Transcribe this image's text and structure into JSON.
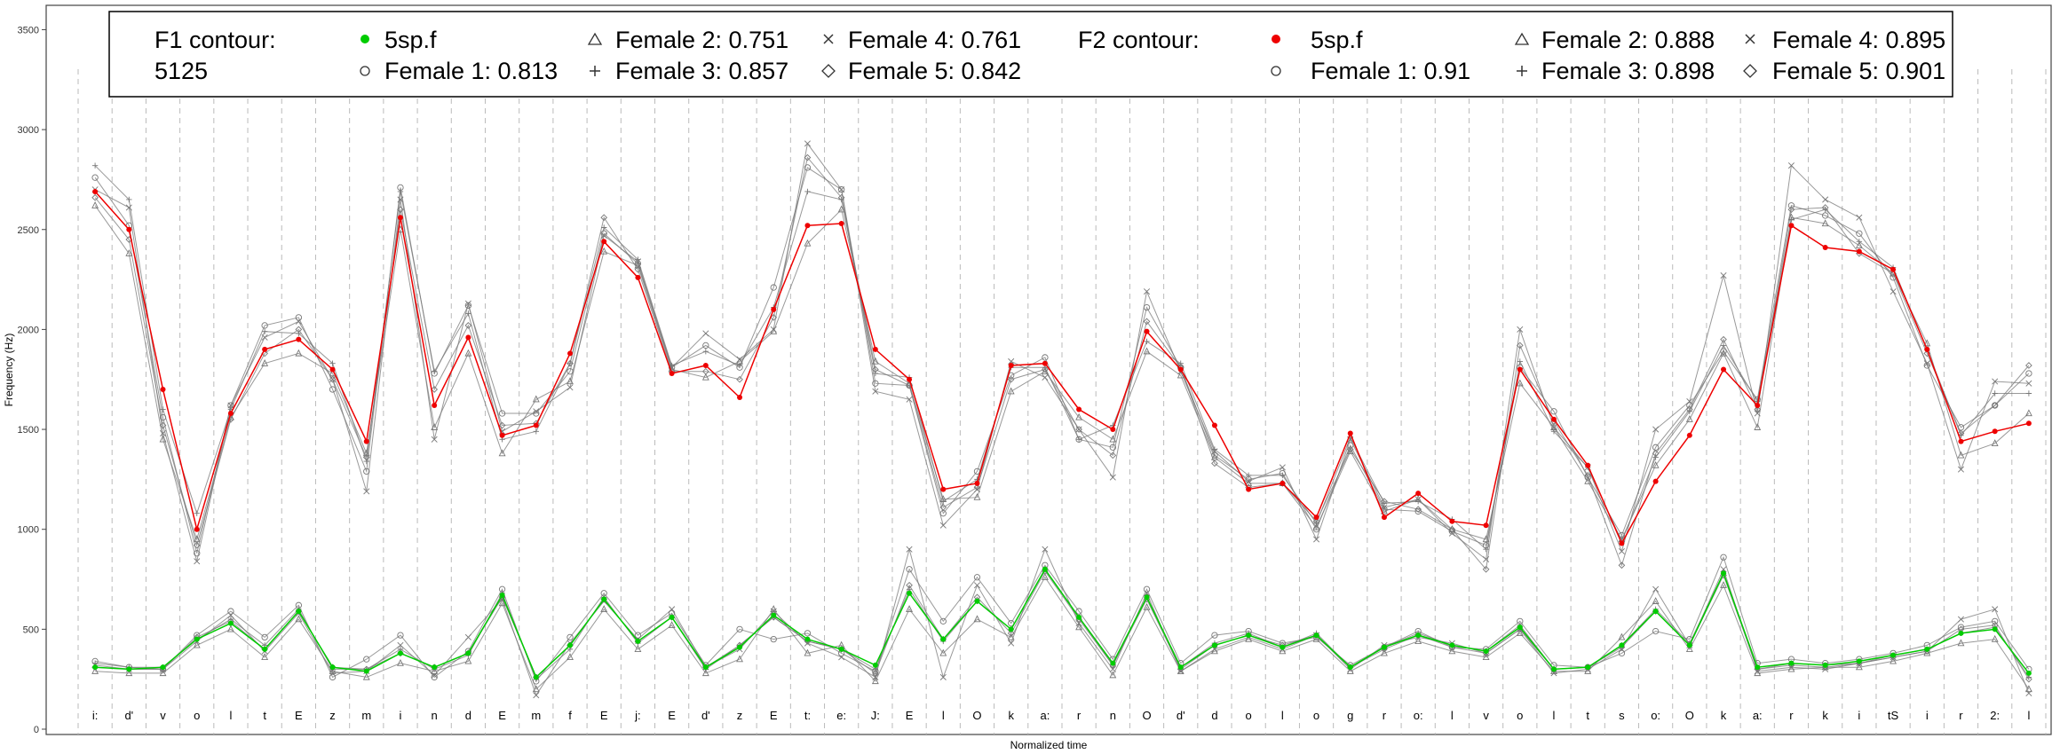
{
  "chart_data": {
    "type": "line",
    "xlabel": "Normalized time",
    "ylabel": "Frequency (Hz)",
    "ylim": [
      0,
      3600
    ],
    "yticks": [
      0,
      500,
      1000,
      1500,
      2000,
      2500,
      3000,
      3500
    ],
    "grid": "vertical dashed segment boundaries",
    "legend_placement": "top",
    "colors": {
      "f1_speaker": "#00cc00",
      "f2_speaker": "#ee0000",
      "reference": "#777777"
    },
    "segments": [
      "i:",
      "d'",
      "v",
      "o",
      "l",
      "t",
      "E",
      "z",
      "m",
      "i",
      "n",
      "d",
      "E",
      "m",
      "f",
      "E",
      "j:",
      "E",
      "d'",
      "z",
      "E",
      "t:",
      "e:",
      "J:",
      "E",
      "l",
      "O",
      "k",
      "a:",
      "r",
      "n",
      "O",
      "d'",
      "d",
      "o",
      "l",
      "o",
      "g",
      "r",
      "o:",
      "l",
      "v",
      "o",
      "l",
      "t",
      "s",
      "o:",
      "O",
      "k",
      "a:",
      "r",
      "k",
      "i",
      "tS",
      "i",
      "r",
      "2:",
      "l"
    ],
    "legend": {
      "f1_title_line1": "F1 contour:",
      "f1_title_line2": "5125",
      "f1_entries": [
        "5sp.f",
        "Female 1: 0.813",
        "Female 2: 0.751",
        "Female 3: 0.857",
        "Female 4: 0.761",
        "Female 5: 0.842"
      ],
      "f2_title": "F2 contour:",
      "f2_entries": [
        "5sp.f",
        "Female 1: 0.91",
        "Female 2: 0.888",
        "Female 3: 0.898",
        "Female 4: 0.895",
        "Female 5: 0.901"
      ]
    },
    "series": [
      {
        "name": "F1 contour: 5sp.f",
        "color": "#00cc00",
        "values": [
          310,
          300,
          310,
          450,
          530,
          400,
          590,
          310,
          290,
          380,
          310,
          380,
          670,
          260,
          420,
          650,
          440,
          560,
          310,
          410,
          570,
          450,
          400,
          320,
          680,
          450,
          640,
          500,
          800,
          560,
          330,
          660,
          310,
          420,
          470,
          410,
          470,
          310,
          410,
          470,
          420,
          390,
          510,
          300,
          310,
          420,
          590,
          420,
          780,
          310,
          330,
          320,
          340,
          370,
          400,
          480,
          500,
          280
        ]
      },
      {
        "name": "F2 contour: 5sp.f",
        "color": "#ee0000",
        "values": [
          2690,
          2500,
          1700,
          1000,
          1580,
          1900,
          1950,
          1800,
          1440,
          2560,
          1620,
          1960,
          1470,
          1520,
          1880,
          2440,
          2260,
          1780,
          1820,
          1660,
          2100,
          2520,
          2530,
          1900,
          1750,
          1200,
          1230,
          1820,
          1830,
          1600,
          1500,
          1990,
          1800,
          1520,
          1200,
          1230,
          1060,
          1480,
          1060,
          1180,
          1040,
          1020,
          1800,
          1550,
          1320,
          930,
          1240,
          1470,
          1800,
          1620,
          2520,
          2410,
          2390,
          2300,
          1900,
          1440,
          1490,
          1530
        ]
      },
      {
        "name": "Female 1",
        "color": "#777777",
        "values": [
          2760,
          2520,
          1560,
          880,
          1620,
          2020,
          2060,
          1700,
          1290,
          2710,
          1780,
          2120,
          1580,
          1580,
          1790,
          2480,
          2330,
          1810,
          1920,
          1810,
          2210,
          2810,
          2700,
          1730,
          1720,
          1080,
          1290,
          1770,
          1860,
          1450,
          1410,
          2110,
          1810,
          1370,
          1250,
          1280,
          1000,
          1420,
          1100,
          1090,
          990,
          920,
          1810,
          1590,
          1260,
          970,
          1410,
          1620,
          1890,
          1650,
          2620,
          2570,
          2480,
          2260,
          1820,
          1510,
          1620,
          1780
        ]
      },
      {
        "name": "Female 2",
        "color": "#777777",
        "values": [
          2620,
          2380,
          1450,
          950,
          1560,
          1830,
          1880,
          1780,
          1380,
          2500,
          1510,
          1880,
          1380,
          1650,
          1740,
          2390,
          2320,
          1800,
          1760,
          1840,
          1990,
          2430,
          2600,
          1840,
          1730,
          1150,
          1160,
          1690,
          1790,
          1560,
          1450,
          1890,
          1770,
          1360,
          1230,
          1230,
          1010,
          1390,
          1090,
          1150,
          1000,
          950,
          1730,
          1510,
          1240,
          950,
          1320,
          1550,
          1880,
          1510,
          2560,
          2530,
          2420,
          2280,
          1930,
          1370,
          1430,
          1580
        ]
      },
      {
        "name": "Female 3",
        "color": "#777777",
        "values": [
          2820,
          2650,
          1600,
          1080,
          1600,
          1990,
          1980,
          1830,
          1340,
          2690,
          1790,
          2080,
          1450,
          1490,
          1830,
          2510,
          2350,
          1820,
          1890,
          1820,
          2110,
          2690,
          2650,
          1780,
          1760,
          1140,
          1250,
          1810,
          1810,
          1450,
          1520,
          1940,
          1830,
          1400,
          1270,
          1270,
          1030,
          1460,
          1130,
          1140,
          1050,
          900,
          1840,
          1490,
          1310,
          940,
          1360,
          1590,
          1920,
          1640,
          2550,
          2600,
          2440,
          2310,
          1900,
          1470,
          1680,
          1680
        ]
      },
      {
        "name": "Female 4",
        "color": "#777777",
        "values": [
          2700,
          2610,
          1480,
          840,
          1620,
          1960,
          2040,
          1750,
          1190,
          2650,
          1450,
          2130,
          1490,
          1590,
          1710,
          2470,
          2340,
          1810,
          1980,
          1850,
          2000,
          2930,
          2700,
          1690,
          1650,
          1020,
          1200,
          1840,
          1760,
          1500,
          1260,
          2190,
          1790,
          1390,
          1240,
          1310,
          950,
          1450,
          1110,
          1150,
          980,
          850,
          2000,
          1510,
          1310,
          890,
          1500,
          1640,
          2270,
          1580,
          2820,
          2650,
          2560,
          2190,
          1830,
          1300,
          1740,
          1730
        ]
      },
      {
        "name": "Female 5",
        "color": "#777777",
        "values": [
          2660,
          2450,
          1520,
          920,
          1550,
          1880,
          2000,
          1750,
          1360,
          2600,
          1700,
          2020,
          1520,
          1530,
          1830,
          2560,
          2300,
          1790,
          1790,
          1750,
          2060,
          2860,
          2660,
          1800,
          1720,
          1110,
          1210,
          1750,
          1800,
          1500,
          1370,
          2040,
          1810,
          1330,
          1210,
          1230,
          1040,
          1400,
          1140,
          1100,
          1000,
          800,
          1920,
          1540,
          1270,
          820,
          1380,
          1600,
          1950,
          1600,
          2600,
          2610,
          2380,
          2280,
          1880,
          1480,
          1620,
          1820
        ]
      },
      {
        "name": "Female 1",
        "color": "#777777",
        "values": [
          340,
          310,
          300,
          470,
          590,
          460,
          620,
          260,
          350,
          470,
          260,
          390,
          700,
          240,
          460,
          680,
          470,
          580,
          320,
          500,
          450,
          480,
          380,
          290,
          800,
          540,
          760,
          530,
          820,
          590,
          350,
          700,
          330,
          470,
          490,
          430,
          460,
          320,
          410,
          490,
          410,
          400,
          540,
          320,
          310,
          380,
          490,
          450,
          860,
          330,
          350,
          330,
          350,
          380,
          420,
          510,
          540,
          300
        ]
      },
      {
        "name": "Female 2",
        "color": "#777777",
        "values": [
          290,
          280,
          280,
          420,
          500,
          360,
          550,
          290,
          260,
          330,
          290,
          340,
          630,
          200,
          360,
          600,
          400,
          520,
          280,
          350,
          600,
          380,
          420,
          240,
          600,
          380,
          550,
          460,
          760,
          510,
          270,
          610,
          290,
          390,
          450,
          390,
          450,
          290,
          380,
          440,
          390,
          360,
          480,
          290,
          290,
          460,
          640,
          400,
          720,
          280,
          300,
          310,
          310,
          340,
          380,
          430,
          450,
          200
        ]
      },
      {
        "name": "Female 3",
        "color": "#777777",
        "values": [
          330,
          310,
          310,
          450,
          550,
          420,
          600,
          300,
          300,
          400,
          300,
          370,
          680,
          250,
          400,
          660,
          430,
          560,
          300,
          420,
          560,
          440,
          400,
          300,
          700,
          440,
          640,
          500,
          800,
          560,
          320,
          660,
          310,
          430,
          480,
          410,
          480,
          310,
          410,
          480,
          420,
          390,
          520,
          300,
          310,
          420,
          600,
          430,
          780,
          300,
          330,
          320,
          330,
          370,
          400,
          480,
          510,
          260
        ]
      },
      {
        "name": "Female 4",
        "color": "#777777",
        "values": [
          320,
          300,
          300,
          440,
          570,
          390,
          580,
          280,
          290,
          420,
          270,
          460,
          650,
          170,
          430,
          640,
          450,
          600,
          310,
          400,
          590,
          430,
          360,
          260,
          900,
          260,
          720,
          430,
          900,
          530,
          300,
          680,
          290,
          400,
          460,
          400,
          470,
          300,
          420,
          460,
          430,
          380,
          500,
          280,
          300,
          400,
          700,
          420,
          800,
          290,
          310,
          300,
          330,
          360,
          390,
          550,
          600,
          180
        ]
      },
      {
        "name": "Female 5",
        "color": "#777777",
        "values": [
          310,
          300,
          300,
          460,
          540,
          400,
          590,
          310,
          300,
          380,
          310,
          380,
          660,
          260,
          420,
          650,
          440,
          560,
          310,
          420,
          560,
          440,
          400,
          280,
          720,
          450,
          660,
          480,
          790,
          550,
          320,
          650,
          300,
          420,
          470,
          420,
          470,
          310,
          400,
          470,
          410,
          380,
          500,
          300,
          310,
          410,
          590,
          420,
          770,
          300,
          320,
          310,
          330,
          360,
          390,
          500,
          520,
          250
        ]
      }
    ]
  }
}
